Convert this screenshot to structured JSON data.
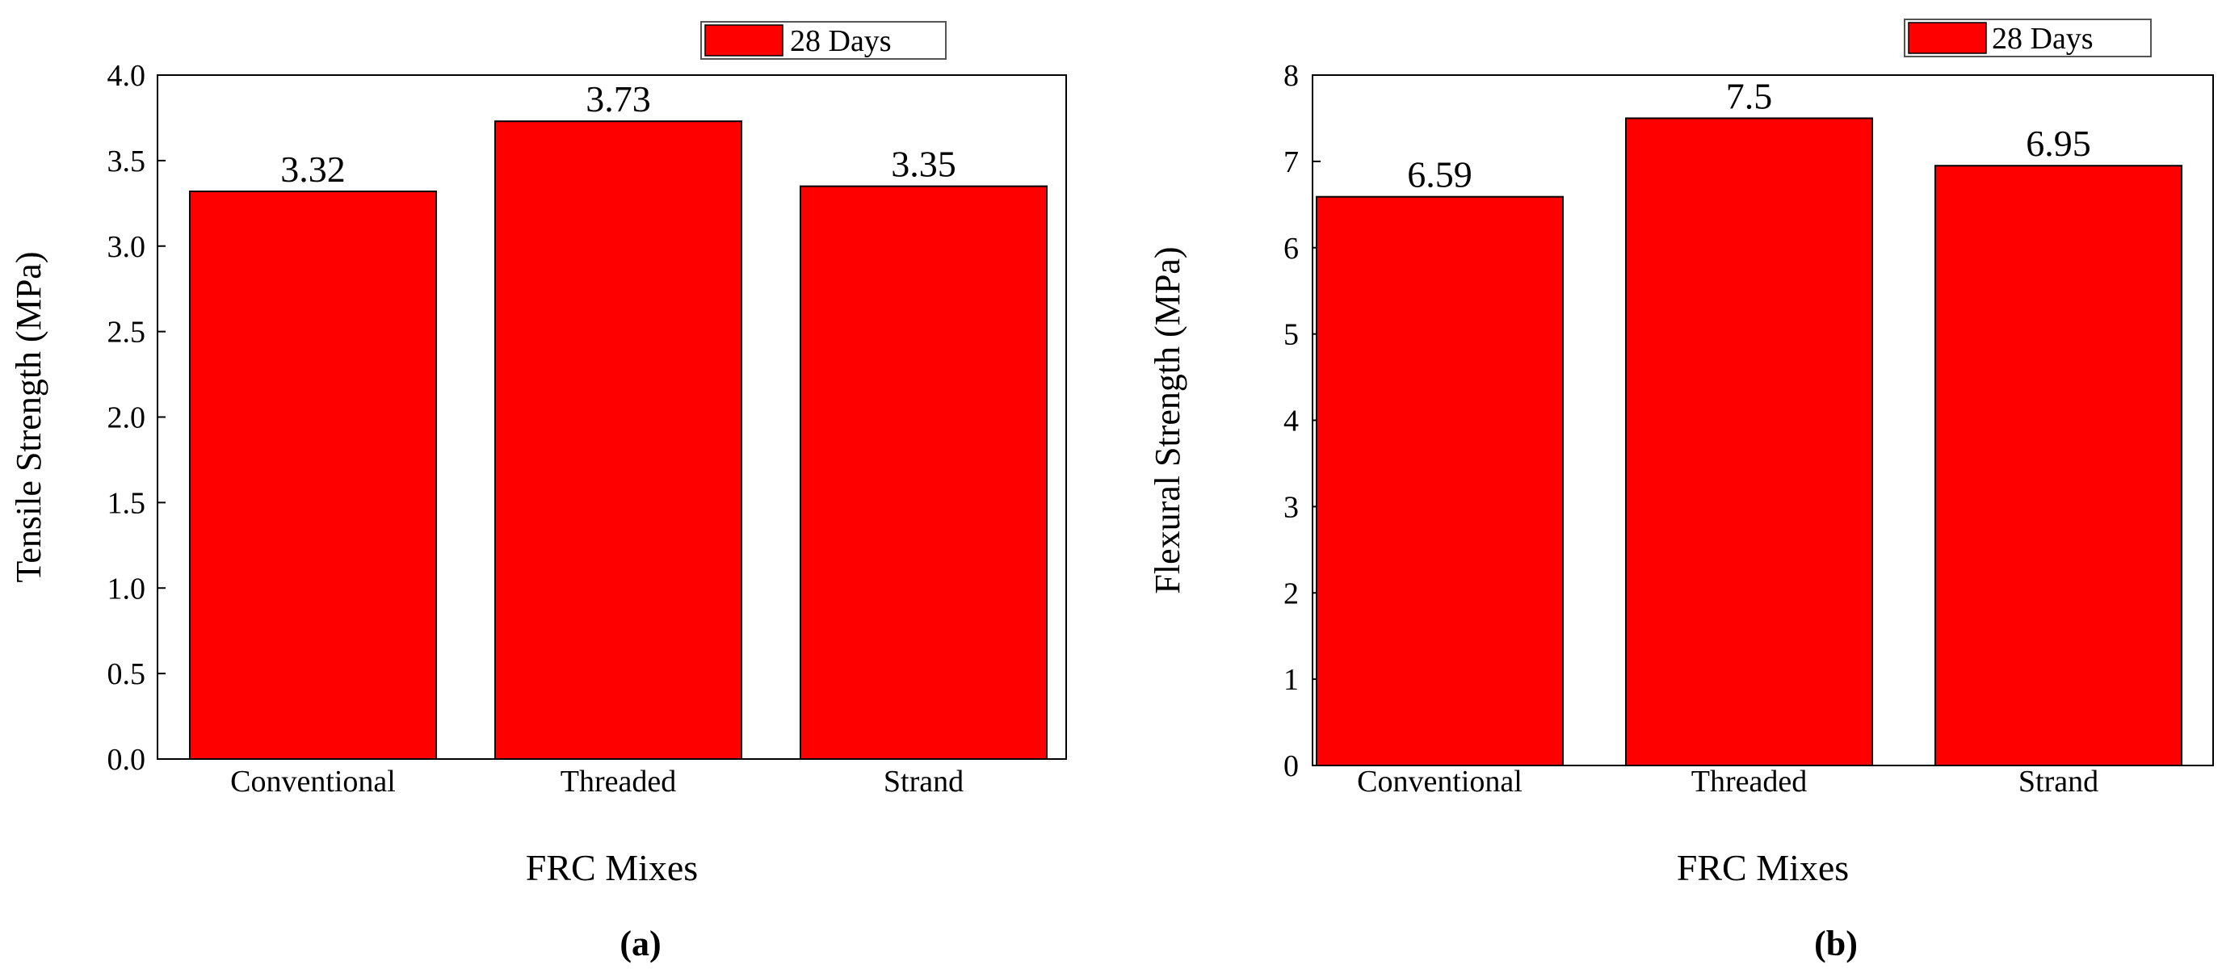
{
  "chart_data": [
    {
      "type": "bar",
      "panel_label": "(a)",
      "categories": [
        "Conventional",
        "Threaded",
        "Strand"
      ],
      "series": [
        {
          "name": "28 Days",
          "values": [
            3.32,
            3.73,
            3.35
          ],
          "data_labels": [
            "3.32",
            "3.73",
            "3.35"
          ]
        }
      ],
      "xlabel": "FRC Mixes",
      "ylabel": "Tensile Strength (MPa)",
      "ylim": [
        0,
        4.0
      ],
      "yticks": [
        "0.0",
        "0.5",
        "1.0",
        "1.5",
        "2.0",
        "2.5",
        "3.0",
        "3.5",
        "4.0"
      ],
      "bar_color": "#ff0000",
      "grid": false,
      "legend_position": "top-right"
    },
    {
      "type": "bar",
      "panel_label": "(b)",
      "categories": [
        "Conventional",
        "Threaded",
        "Strand"
      ],
      "series": [
        {
          "name": "28 Days",
          "values": [
            6.59,
            7.5,
            6.95
          ],
          "data_labels": [
            "6.59",
            "7.5",
            "6.95"
          ]
        }
      ],
      "xlabel": "FRC Mixes",
      "ylabel": "Flexural Strength (MPa)",
      "ylim": [
        0,
        8
      ],
      "yticks": [
        "0",
        "1",
        "2",
        "3",
        "4",
        "5",
        "6",
        "7",
        "8"
      ],
      "bar_color": "#ff0000",
      "grid": false,
      "legend_position": "top-right"
    }
  ]
}
